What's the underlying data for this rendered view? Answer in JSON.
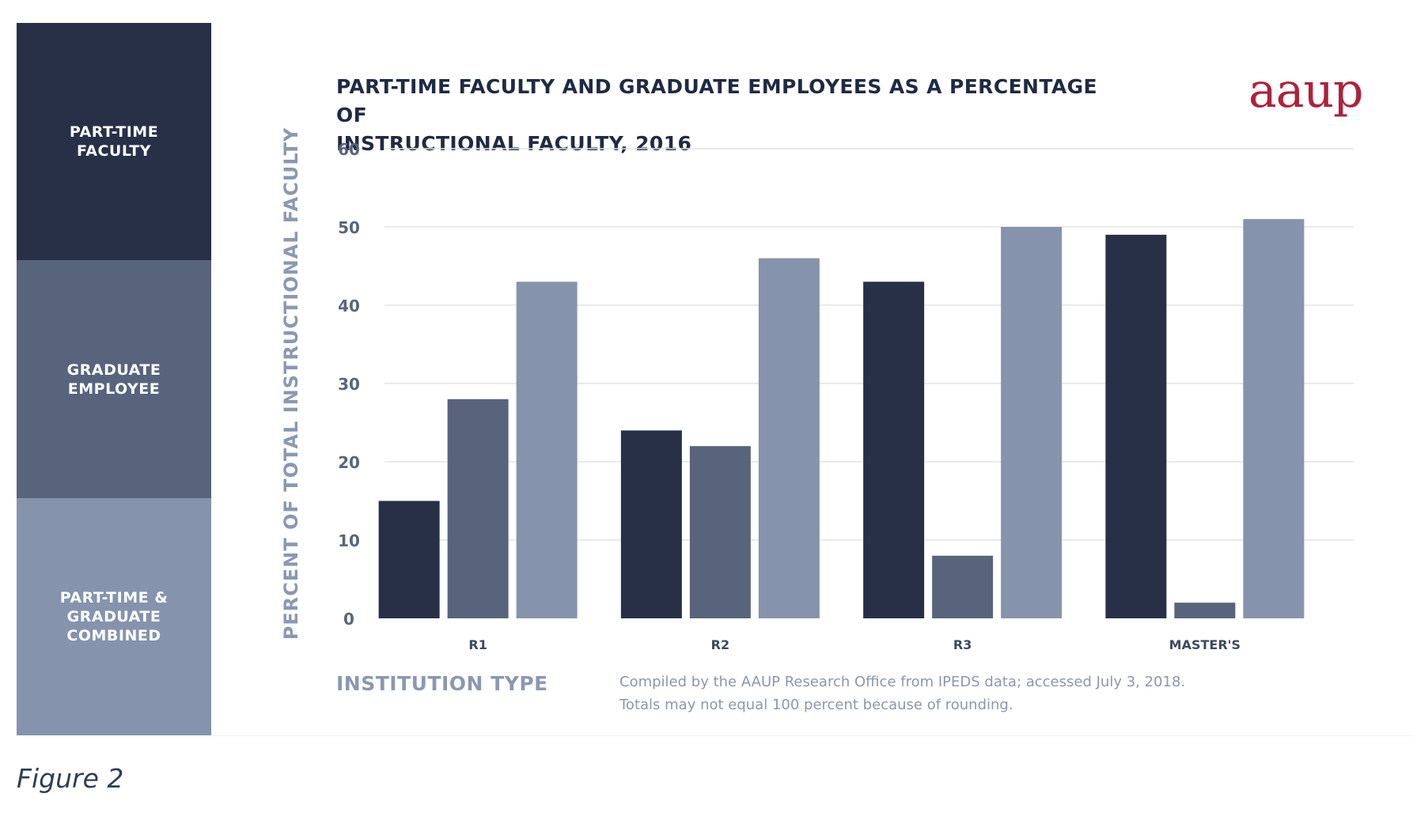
{
  "legend": {
    "items": [
      {
        "label": "PART-TIME\nFACULTY",
        "color": "#273047"
      },
      {
        "label": "GRADUATE\nEMPLOYEE",
        "color": "#58647c"
      },
      {
        "label": "PART-TIME &\nGRADUATE\nCOMBINED",
        "color": "#8593ad"
      }
    ]
  },
  "brand": "aaup",
  "footnote": "Compiled by the AAUP Research Office from IPEDS data; accessed July 3, 2018.\nTotals may not equal 100 percent because of rounding.",
  "caption": "Figure 2",
  "chart_data": {
    "type": "bar",
    "title": "PART-TIME FACULTY AND GRADUATE EMPLOYEES AS A PERCENTAGE OF\nINSTRUCTIONAL FACULTY, 2016",
    "xlabel": "INSTITUTION TYPE",
    "ylabel": "PERCENT OF TOTAL INSTRUCTIONAL FACULTY",
    "categories": [
      "R1",
      "R2",
      "R3",
      "MASTER'S"
    ],
    "series": [
      {
        "name": "PART-TIME FACULTY",
        "values": [
          15,
          24,
          43,
          49
        ],
        "color": "#273047"
      },
      {
        "name": "GRADUATE EMPLOYEE",
        "values": [
          28,
          22,
          8,
          2
        ],
        "color": "#58647c"
      },
      {
        "name": "PART-TIME & GRADUATE COMBINED",
        "values": [
          43,
          46,
          50,
          51
        ],
        "color": "#8593ad"
      }
    ],
    "yticks": [
      0,
      10,
      20,
      30,
      40,
      50,
      60
    ],
    "ylim": [
      0,
      60
    ],
    "grid": true,
    "legend_position": "left"
  }
}
